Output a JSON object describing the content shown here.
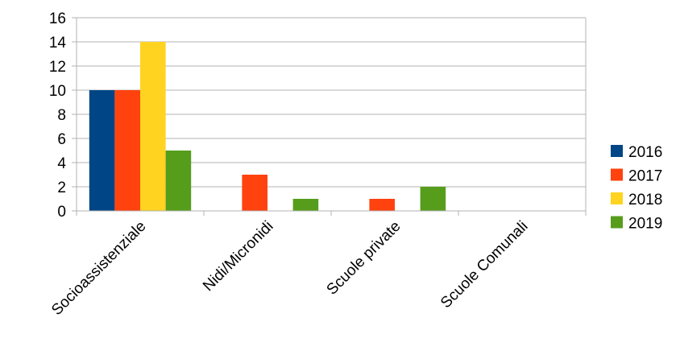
{
  "chart_data": {
    "type": "bar",
    "title": "",
    "xlabel": "",
    "ylabel": "",
    "ylim": [
      0,
      16
    ],
    "yticks": [
      0,
      2,
      4,
      6,
      8,
      10,
      12,
      14,
      16
    ],
    "grid": true,
    "legend_position": "right",
    "categories": [
      "Socioassistenziale",
      "Nidi/Micronidi",
      "Scuole private",
      "Scuole Comunali"
    ],
    "series": [
      {
        "name": "2016",
        "color": "#004586",
        "values": [
          10,
          0,
          0,
          0
        ]
      },
      {
        "name": "2017",
        "color": "#ff420e",
        "values": [
          10,
          3,
          1,
          0
        ]
      },
      {
        "name": "2018",
        "color": "#ffd320",
        "values": [
          14,
          0,
          0,
          0
        ]
      },
      {
        "name": "2019",
        "color": "#579d1c",
        "values": [
          5,
          1,
          2,
          0
        ]
      }
    ]
  }
}
